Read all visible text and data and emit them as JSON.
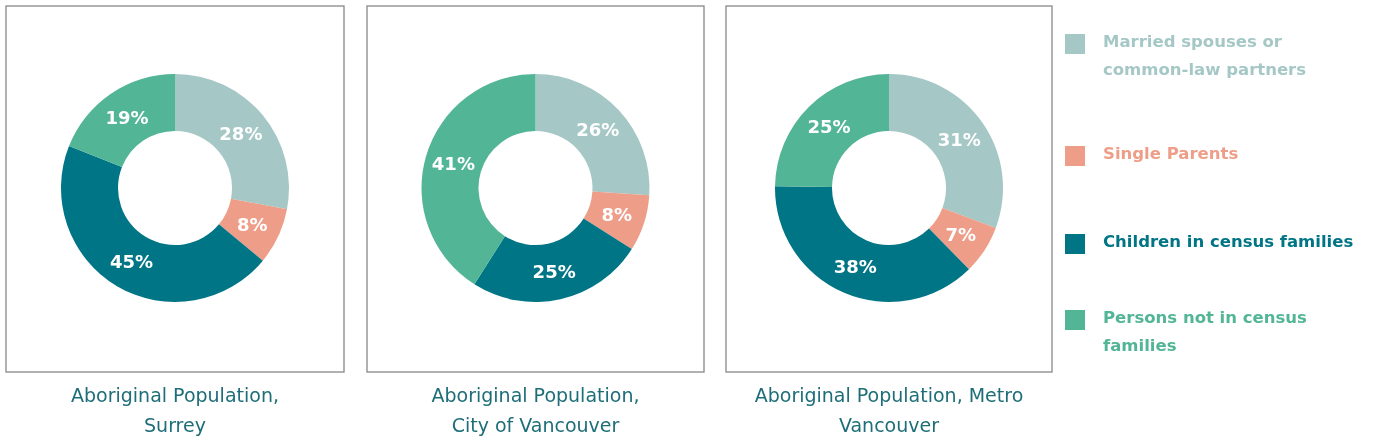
{
  "chart_data": [
    {
      "type": "donut",
      "title": "Aboriginal Population,\nSurrey",
      "categories": [
        null,
        null,
        null,
        null
      ],
      "values": [
        28,
        8,
        45,
        19
      ],
      "value_labels": [
        "28%",
        "8%",
        "45%",
        "19%"
      ],
      "colors": [
        "#a5c8c6",
        "#ee9e88",
        "#007585",
        "#52b596"
      ]
    },
    {
      "type": "donut",
      "title": "Aboriginal Population,\nCity of Vancouver",
      "categories": [
        null,
        null,
        null,
        null
      ],
      "values": [
        26,
        8,
        25,
        41
      ],
      "value_labels": [
        "26%",
        "8%",
        "25%",
        "41%"
      ],
      "colors": [
        "#a5c8c6",
        "#ee9e88",
        "#007585",
        "#52b596"
      ]
    },
    {
      "type": "donut",
      "title": "Aboriginal Population, Metro\nVancouver",
      "categories": [
        "Married spouses or common-law partners",
        "Single Parents",
        "Children in census families",
        "Persons not in census families"
      ],
      "values": [
        31,
        7,
        38,
        25
      ],
      "value_labels": [
        "31%",
        "7%",
        "38%",
        "25%"
      ],
      "colors": [
        "#a5c8c6",
        "#ee9e88",
        "#007585",
        "#52b596"
      ],
      "legend": "right"
    }
  ]
}
